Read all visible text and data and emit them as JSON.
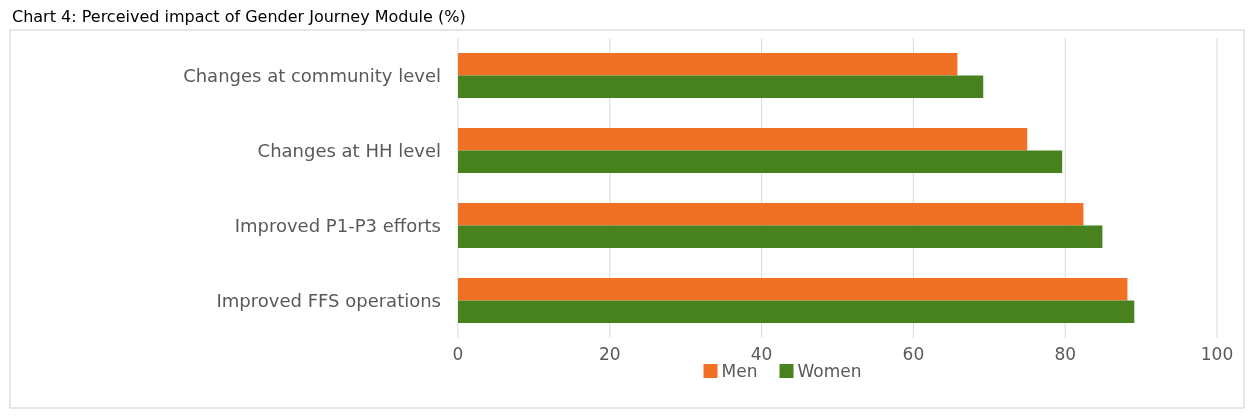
{
  "chart_data": {
    "type": "bar",
    "orientation": "horizontal",
    "title": "Chart 4: Perceived impact of Gender Journey Module (%)",
    "categories": [
      "Changes at community level",
      "Changes at HH level",
      "Improved P1-P3 efforts",
      "Improved FFS operations"
    ],
    "series": [
      {
        "name": "Men",
        "color": "#f07024",
        "values": [
          65.8,
          75.0,
          82.4,
          88.2
        ]
      },
      {
        "name": "Women",
        "color": "#47821e",
        "values": [
          69.2,
          79.6,
          84.9,
          89.1
        ]
      }
    ],
    "xlim": [
      0,
      100
    ],
    "xticks": [
      0,
      20,
      40,
      60,
      80,
      100
    ],
    "grid": "x",
    "legend": "bottom"
  }
}
